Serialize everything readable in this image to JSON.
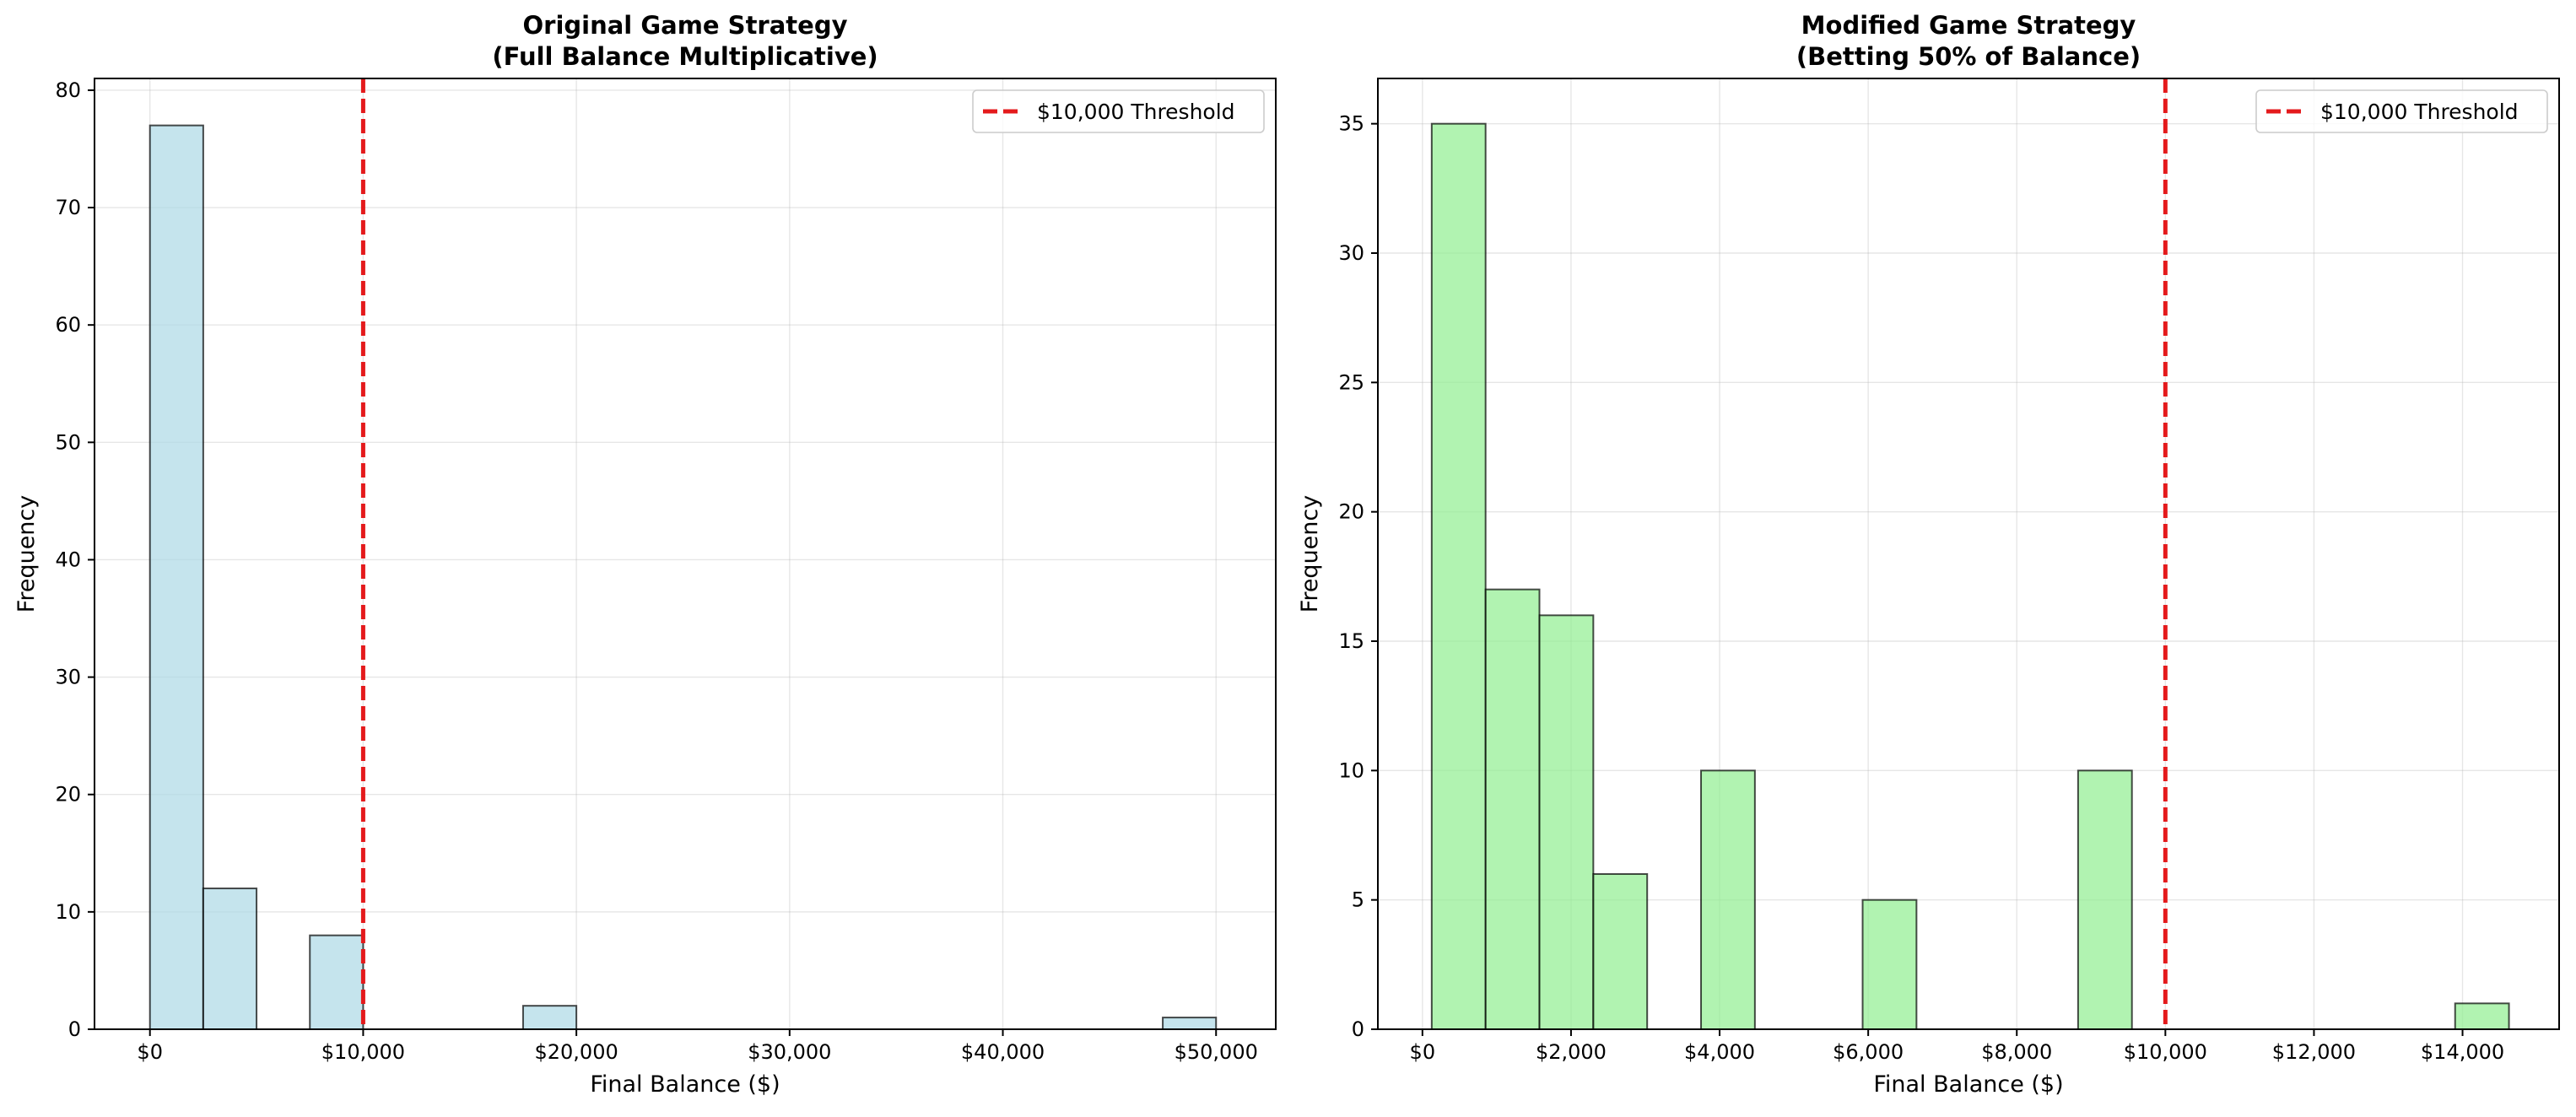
{
  "chart_data": [
    {
      "type": "bar",
      "title_line1": "Original Game Strategy",
      "title_line2": "(Full Balance Multiplicative)",
      "xlabel": "Final Balance ($)",
      "ylabel": "Frequency",
      "xlim": [
        -2600,
        52800
      ],
      "ylim": [
        0,
        81
      ],
      "xticks": [
        0,
        10000,
        20000,
        30000,
        40000,
        50000
      ],
      "xtick_labels": [
        "$0",
        "$10,000",
        "$20,000",
        "$30,000",
        "$40,000",
        "$50,000"
      ],
      "yticks": [
        0,
        10,
        20,
        30,
        40,
        50,
        60,
        70,
        80
      ],
      "ytick_labels": [
        "0",
        "10",
        "20",
        "30",
        "40",
        "50",
        "60",
        "70",
        "80"
      ],
      "bars": [
        {
          "x0": 0,
          "x1": 2500,
          "value": 77
        },
        {
          "x0": 2500,
          "x1": 5000,
          "value": 12
        },
        {
          "x0": 7500,
          "x1": 10000,
          "value": 8
        },
        {
          "x0": 17500,
          "x1": 20000,
          "value": 2
        },
        {
          "x0": 47500,
          "x1": 50000,
          "value": 1
        }
      ],
      "bar_color": "#add8e6",
      "bar_alpha": 0.7,
      "threshold": 10000,
      "threshold_color": "#e41a1c",
      "legend_label": "$10,000 Threshold",
      "legend_position": "upper right",
      "grid": true
    },
    {
      "type": "bar",
      "title_line1": "Modified Game Strategy",
      "title_line2": "(Betting 50% of Balance)",
      "xlabel": "Final Balance ($)",
      "ylabel": "Frequency",
      "xlim": [
        -600,
        15300
      ],
      "ylim": [
        0,
        36.75
      ],
      "xticks": [
        0,
        2000,
        4000,
        6000,
        8000,
        10000,
        12000,
        14000
      ],
      "xtick_labels": [
        "$0",
        "$2,000",
        "$4,000",
        "$6,000",
        "$8,000",
        "$10,000",
        "$12,000",
        "$14,000"
      ],
      "yticks": [
        0,
        5,
        10,
        15,
        20,
        25,
        30,
        35
      ],
      "ytick_labels": [
        "0",
        "5",
        "10",
        "15",
        "20",
        "25",
        "30",
        "35"
      ],
      "bars": [
        {
          "x0": 125,
          "x1": 850,
          "value": 35
        },
        {
          "x0": 850,
          "x1": 1575,
          "value": 17
        },
        {
          "x0": 1575,
          "x1": 2300,
          "value": 16
        },
        {
          "x0": 2300,
          "x1": 3025,
          "value": 6
        },
        {
          "x0": 3750,
          "x1": 4475,
          "value": 10
        },
        {
          "x0": 5925,
          "x1": 6650,
          "value": 5
        },
        {
          "x0": 8825,
          "x1": 9550,
          "value": 10
        },
        {
          "x0": 13900,
          "x1": 14625,
          "value": 1
        }
      ],
      "bar_color": "#90ee90",
      "bar_alpha": 0.7,
      "threshold": 10000,
      "threshold_color": "#e41a1c",
      "legend_label": "$10,000 Threshold",
      "legend_position": "upper right",
      "grid": true
    }
  ]
}
